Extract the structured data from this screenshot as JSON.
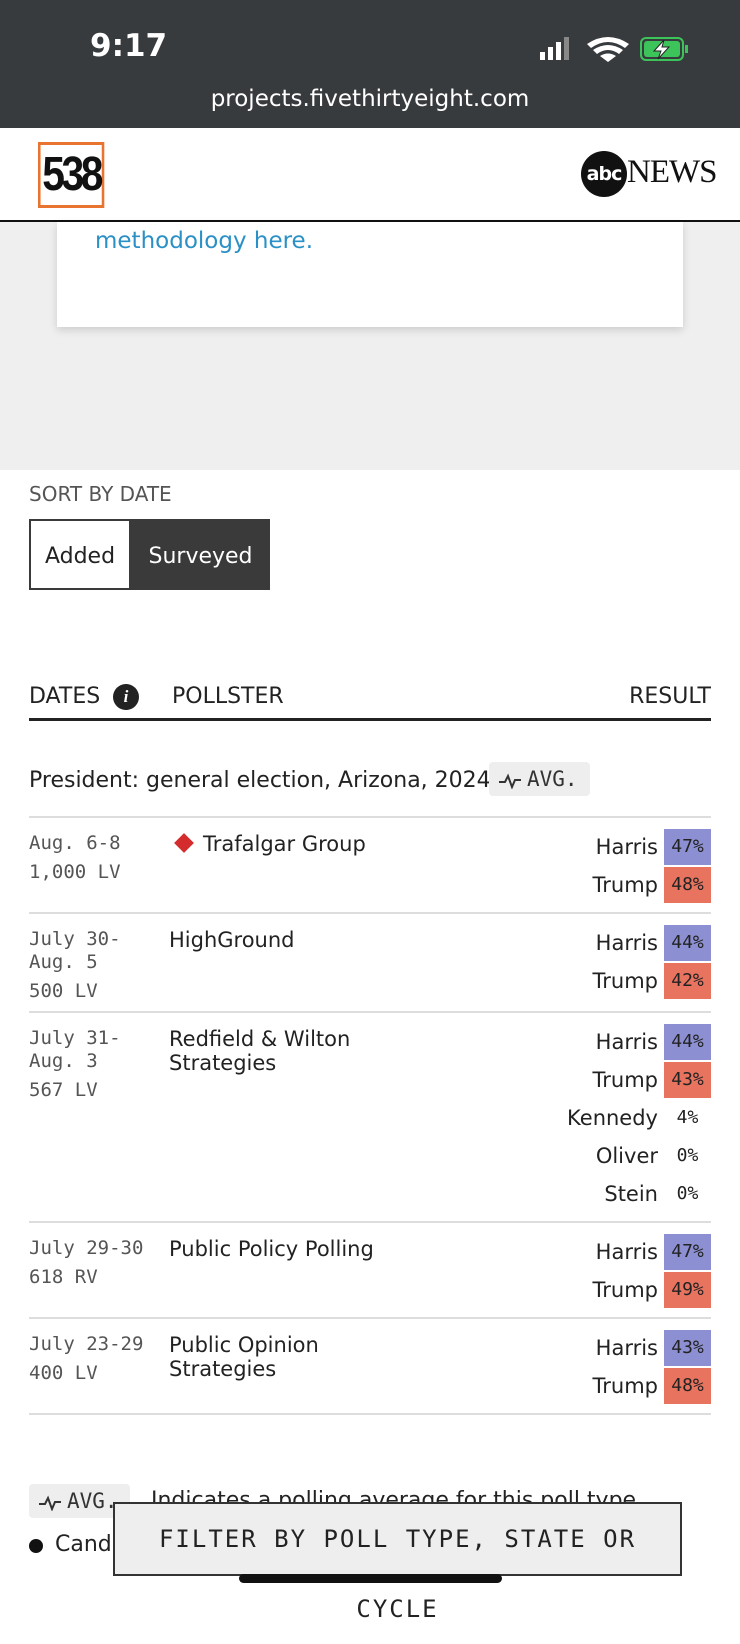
{
  "status_bar": {
    "time": "9:17",
    "url": "projects.fivethirtyeight.com"
  },
  "header": {
    "logo": "538",
    "brand_a": "abc",
    "brand_b": "NEWS"
  },
  "card": {
    "link": "methodology here."
  },
  "sort": {
    "label": "SORT BY DATE",
    "options": [
      "Added",
      "Surveyed"
    ],
    "selected": 1
  },
  "table": {
    "headers": [
      "DATES",
      "POLLSTER",
      "RESULT"
    ],
    "group": {
      "title": "President: general election, Arizona, 2024",
      "badge": "AVG."
    },
    "polls": [
      {
        "dates": "Aug. 6-8",
        "sample": "1,000",
        "population": "LV",
        "pollster": "Trafalgar Group",
        "results": [
          {
            "candidate": "Harris",
            "value": "47%"
          },
          {
            "candidate": "Trump",
            "value": "48%"
          }
        ]
      },
      {
        "dates": "July 30-Aug. 5",
        "sample": "500",
        "population": "LV",
        "pollster": "HighGround",
        "results": [
          {
            "candidate": "Harris",
            "value": "44%"
          },
          {
            "candidate": "Trump",
            "value": "42%"
          }
        ]
      },
      {
        "dates": "July 31-Aug. 3",
        "sample": "567",
        "population": "LV",
        "pollster": "Redfield & Wilton Strategies",
        "results": [
          {
            "candidate": "Harris",
            "value": "44%"
          },
          {
            "candidate": "Trump",
            "value": "43%"
          },
          {
            "candidate": "Kennedy",
            "value": "4%"
          },
          {
            "candidate": "Oliver",
            "value": "0%"
          },
          {
            "candidate": "Stein",
            "value": "0%"
          }
        ]
      },
      {
        "dates": "July 29-30",
        "sample": "618",
        "population": "RV",
        "pollster": "Public Policy Polling",
        "results": [
          {
            "candidate": "Harris",
            "value": "47%"
          },
          {
            "candidate": "Trump",
            "value": "49%"
          }
        ]
      },
      {
        "dates": "July 23-29",
        "sample": "400",
        "population": "LV",
        "pollster": "Public Opinion Strategies",
        "results": [
          {
            "candidate": "Harris",
            "value": "43%"
          },
          {
            "candidate": "Trump",
            "value": "48%"
          }
        ]
      }
    ]
  },
  "legend": {
    "badge": "AVG.",
    "text": "Indicates a polling average for this poll type",
    "item": "Cand"
  },
  "filter": {
    "label": "FILTER BY POLL TYPE, STATE OR CYCLE"
  }
}
